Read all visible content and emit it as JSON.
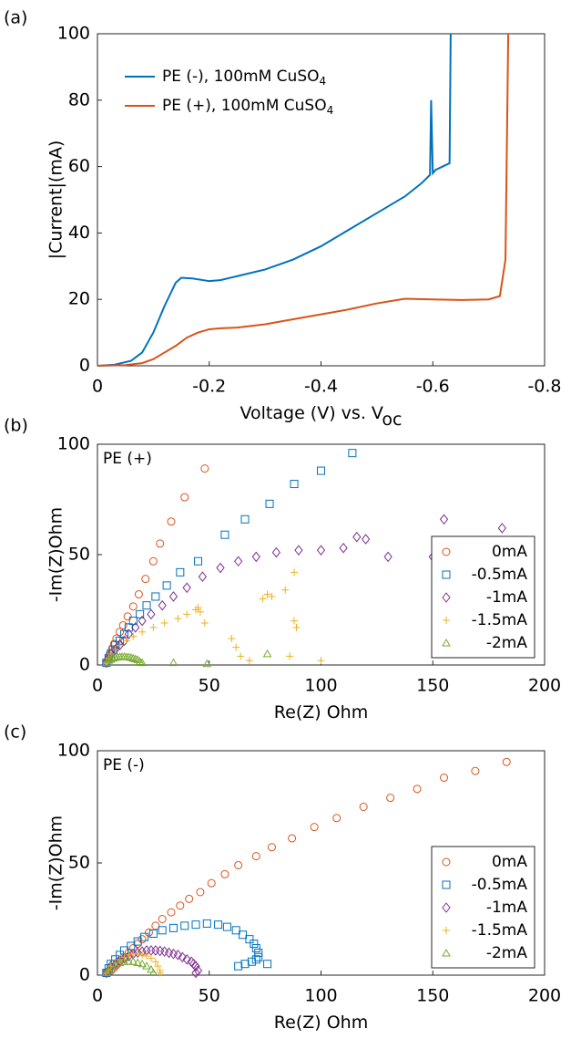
{
  "chart_data": [
    {
      "type": "line",
      "panel_label": "(a)",
      "xlabel": "Voltage (V) vs. V",
      "xlabel_subscript": "oc",
      "ylabel": "|Current|(mA)",
      "xlim": [
        0,
        -0.8
      ],
      "ylim": [
        0,
        100
      ],
      "xticks": [
        0,
        -0.2,
        -0.4,
        -0.6,
        -0.8
      ],
      "yticks": [
        0,
        20,
        40,
        60,
        80,
        100
      ],
      "legend": "top-left",
      "series": [
        {
          "name": "PE (-), 100mM CuSO",
          "name_subscript": "4",
          "color": "#0072bd",
          "x": [
            0,
            -0.03,
            -0.06,
            -0.08,
            -0.1,
            -0.12,
            -0.14,
            -0.15,
            -0.17,
            -0.2,
            -0.22,
            -0.25,
            -0.3,
            -0.35,
            -0.4,
            -0.45,
            -0.5,
            -0.55,
            -0.58,
            -0.595,
            -0.597,
            -0.6,
            -0.605,
            -0.63,
            -0.632
          ],
          "values": [
            0,
            0.3,
            1.5,
            4,
            10,
            18,
            25,
            26.5,
            26.3,
            25.5,
            25.8,
            27,
            29,
            32,
            36,
            41,
            46,
            51,
            55,
            57.5,
            80,
            58,
            59,
            61,
            100
          ]
        },
        {
          "name": "PE (+), 100mM CuSO",
          "name_subscript": "4",
          "color": "#d95319",
          "x": [
            0,
            -0.05,
            -0.08,
            -0.1,
            -0.12,
            -0.14,
            -0.16,
            -0.18,
            -0.2,
            -0.22,
            -0.25,
            -0.3,
            -0.35,
            -0.4,
            -0.45,
            -0.5,
            -0.55,
            -0.6,
            -0.65,
            -0.7,
            -0.72,
            -0.73,
            -0.735
          ],
          "values": [
            0,
            0.2,
            0.8,
            2,
            4,
            6,
            8.5,
            10,
            11,
            11.3,
            11.5,
            12.5,
            14,
            15.5,
            17,
            18.8,
            20.2,
            20,
            19.8,
            20,
            21,
            32,
            100
          ]
        }
      ]
    },
    {
      "type": "scatter",
      "panel_label": "(b)",
      "annotation": "PE (+)",
      "xlabel": "Re(Z) Ohm",
      "ylabel": "-Im(Z)Ohm",
      "xlim": [
        0,
        200
      ],
      "ylim": [
        0,
        100
      ],
      "xticks": [
        0,
        50,
        100,
        150,
        200
      ],
      "yticks": [
        0,
        50,
        100
      ],
      "legend": "right",
      "series": [
        {
          "name": "0mA",
          "color": "#d95319",
          "marker": "circle",
          "x": [
            4,
            5,
            5.5,
            6.5,
            7.5,
            8.5,
            10,
            11.5,
            13.5,
            16,
            18.5,
            21.5,
            25,
            28,
            33,
            39,
            48
          ],
          "values": [
            1,
            3,
            5,
            7,
            9.5,
            12,
            15,
            18,
            22,
            26.5,
            32,
            39,
            47,
            55,
            65,
            76,
            89
          ]
        },
        {
          "name": "-0.5mA",
          "color": "#0072bd",
          "marker": "square",
          "x": [
            4,
            5,
            6,
            7,
            8,
            10,
            12,
            14,
            16,
            19,
            22,
            26,
            31,
            37,
            45,
            57,
            66,
            77,
            88,
            100,
            114
          ],
          "values": [
            1,
            3,
            5,
            7,
            9,
            11,
            14,
            17,
            20,
            23,
            27,
            31,
            36,
            42,
            47,
            59,
            66,
            73,
            82,
            88,
            96
          ]
        },
        {
          "name": "-1mA",
          "color": "#7e2f8e",
          "marker": "diamond",
          "x": [
            4,
            5,
            6,
            8,
            10,
            12,
            14,
            17,
            20,
            24,
            29,
            34,
            40,
            47,
            55,
            63,
            71,
            80,
            90,
            100,
            110,
            116,
            120,
            130,
            150,
            155,
            181
          ],
          "values": [
            1,
            3,
            5,
            7,
            9,
            11,
            14,
            17,
            20,
            23,
            27,
            31,
            35,
            40,
            44,
            47,
            49,
            51,
            52,
            52,
            53,
            58,
            57,
            49,
            49,
            66,
            62
          ]
        },
        {
          "name": "-1.5mA",
          "color": "#edb120",
          "marker": "plus",
          "x": [
            4,
            5,
            6,
            8,
            10,
            13,
            16,
            20,
            25,
            30,
            36,
            40,
            44,
            45,
            46,
            48,
            60,
            62,
            64,
            68,
            74,
            76,
            78,
            84,
            88,
            88,
            89,
            86,
            100
          ],
          "values": [
            1,
            3,
            5,
            7,
            9,
            11,
            13,
            15,
            17,
            19,
            21,
            23,
            25,
            26,
            24,
            19,
            12,
            8,
            4,
            2,
            30,
            32,
            31,
            34,
            42,
            20,
            17,
            4,
            2
          ]
        },
        {
          "name": "-2mA",
          "color": "#77ac30",
          "marker": "triangle",
          "x": [
            4,
            5,
            6,
            7,
            8,
            9,
            10,
            11,
            12,
            13,
            14,
            15,
            16,
            17,
            18,
            19,
            20,
            34,
            49,
            76
          ],
          "values": [
            1,
            2,
            2.5,
            3,
            3.3,
            3.5,
            3.6,
            3.7,
            3.7,
            3.6,
            3.5,
            3.3,
            3,
            2.7,
            2.3,
            1.5,
            1,
            1,
            0.5,
            5
          ]
        }
      ]
    },
    {
      "type": "scatter",
      "panel_label": "(c)",
      "annotation": "PE (-)",
      "xlabel": "Re(Z) Ohm",
      "ylabel": "-Im(Z)Ohm",
      "xlim": [
        0,
        200
      ],
      "ylim": [
        0,
        100
      ],
      "xticks": [
        0,
        50,
        100,
        150,
        200
      ],
      "yticks": [
        0,
        50,
        100
      ],
      "legend": "right",
      "series": [
        {
          "name": "0mA",
          "color": "#d95319",
          "marker": "circle",
          "x": [
            4,
            5,
            6,
            7,
            8,
            9,
            10,
            12,
            14,
            16,
            18,
            20,
            23,
            26,
            29,
            33,
            37,
            41,
            46,
            51,
            57,
            63,
            71,
            78,
            87,
            97,
            107,
            119,
            131,
            143,
            155,
            169,
            183
          ],
          "values": [
            1,
            1.5,
            2,
            3,
            4,
            5,
            6.5,
            8,
            10,
            12,
            14,
            16,
            19,
            22,
            25,
            28,
            31,
            34,
            37,
            41,
            45,
            49,
            53,
            57,
            61,
            66,
            70,
            75,
            79,
            83,
            88,
            91,
            95
          ]
        },
        {
          "name": "-0.5mA",
          "color": "#0072bd",
          "marker": "square",
          "x": [
            4,
            5,
            6,
            8,
            10,
            12,
            15,
            18,
            21,
            25,
            29,
            34,
            39,
            44,
            49,
            54,
            58,
            62,
            65,
            68,
            70,
            71,
            72,
            72,
            71,
            69,
            66,
            63,
            76
          ],
          "values": [
            1,
            3,
            5,
            7,
            9,
            11,
            13,
            15,
            17,
            18.5,
            20,
            21,
            22,
            22.5,
            23,
            22.5,
            21.5,
            20,
            18,
            16,
            14,
            12,
            10,
            8,
            7,
            6,
            5,
            4,
            5
          ]
        },
        {
          "name": "-1mA",
          "color": "#7e2f8e",
          "marker": "diamond",
          "x": [
            4,
            5,
            6,
            8,
            10,
            12,
            14,
            16,
            18,
            20,
            22,
            24,
            26,
            28,
            30,
            32,
            34,
            36,
            38,
            40,
            42,
            43,
            44,
            45,
            44
          ],
          "values": [
            1,
            2,
            4,
            5,
            6.5,
            7.5,
            8.5,
            9.5,
            10,
            10.5,
            11,
            11,
            11,
            10.8,
            10.5,
            10,
            9.5,
            9,
            8,
            7,
            6,
            5,
            4,
            2,
            1
          ]
        },
        {
          "name": "-1.5mA",
          "color": "#edb120",
          "marker": "plus",
          "x": [
            4,
            5,
            6,
            8,
            10,
            12,
            14,
            16,
            18,
            20,
            22,
            24,
            26,
            27,
            28,
            28
          ],
          "values": [
            1,
            2,
            4,
            5.5,
            7,
            8,
            9,
            9.5,
            9.5,
            9,
            8.5,
            7.5,
            6,
            4,
            2,
            1
          ]
        },
        {
          "name": "-2mA",
          "color": "#77ac30",
          "marker": "triangle",
          "x": [
            4,
            5,
            6,
            8,
            10,
            12,
            14,
            16,
            18,
            20,
            22,
            24,
            25
          ],
          "values": [
            1,
            2,
            3.5,
            4.5,
            5.5,
            6,
            6,
            6,
            5.5,
            5,
            4,
            2.5,
            1
          ]
        }
      ]
    }
  ]
}
